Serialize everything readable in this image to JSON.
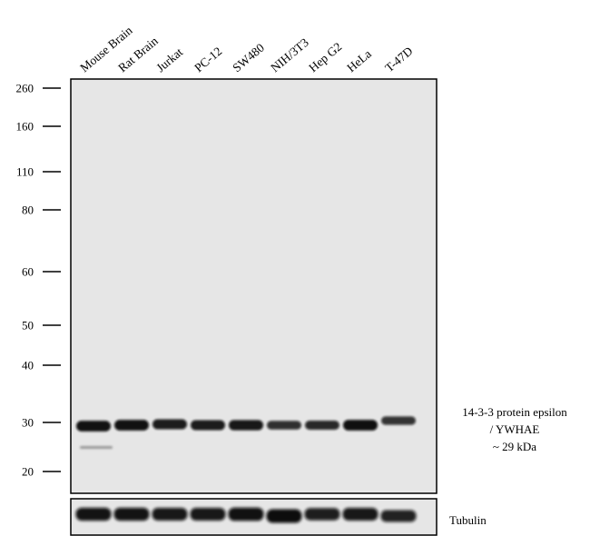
{
  "lanes": [
    "Mouse Brain",
    "Rat Brain",
    "Jurkat",
    "PC-12",
    "SW480",
    "NIH/3T3",
    "Hep G2",
    "HeLa",
    "T-47D"
  ],
  "markers": [
    {
      "label": "260",
      "kda": 260
    },
    {
      "label": "160",
      "kda": 160
    },
    {
      "label": "110",
      "kda": 110
    },
    {
      "label": "80",
      "kda": 80
    },
    {
      "label": "60",
      "kda": 60
    },
    {
      "label": "50",
      "kda": 50
    },
    {
      "label": "40",
      "kda": 40
    },
    {
      "label": "30",
      "kda": 30
    },
    {
      "label": "20",
      "kda": 20
    }
  ],
  "target": {
    "line1": "14-3-3  protein epsilon",
    "line2": "/ YWHAE",
    "line3": "~ 29 kDa"
  },
  "loading_control": "Tubulin",
  "target_band_intensity": [
    0.95,
    0.95,
    0.85,
    0.85,
    0.88,
    0.65,
    0.72,
    0.98,
    0.6
  ],
  "tubulin_band_intensity": [
    0.92,
    0.92,
    0.88,
    0.88,
    0.95,
    1.0,
    0.8,
    0.88,
    0.75
  ],
  "colors": {
    "membrane": "#e6e6e6",
    "band": "#0a0a0a"
  }
}
